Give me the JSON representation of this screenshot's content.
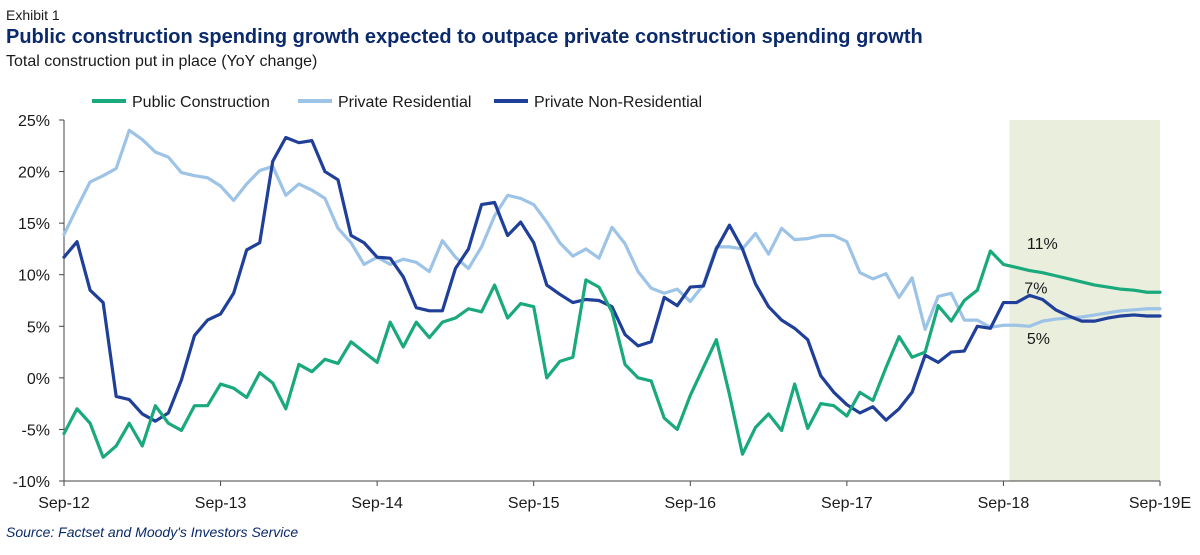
{
  "header": {
    "exhibit": "Exhibit 1",
    "title": "Public construction spending growth expected to outpace private construction spending growth",
    "subtitle": "Total construction put in place (YoY change)"
  },
  "source": "Source: Factset and Moody's Investors Service",
  "colors": {
    "public": "#1aa97c",
    "private_residential": "#9dc3e6",
    "private_non_residential": "#1f3f99",
    "forecast_band": "#e9eedd",
    "axis": "#444444"
  },
  "chart_data": {
    "type": "line",
    "title": "Public construction spending growth expected to outpace private construction spending growth",
    "xlabel": "",
    "ylabel": "",
    "ylim": [
      -10,
      25
    ],
    "y_ticks": [
      25,
      20,
      15,
      10,
      5,
      0,
      -5,
      -10
    ],
    "y_tick_labels": [
      "25%",
      "20%",
      "15%",
      "10%",
      "5%",
      "0%",
      "-5%",
      "-10%"
    ],
    "x_ticks": [
      0,
      12,
      24,
      36,
      48,
      60,
      72,
      84
    ],
    "x_tick_labels": [
      "Sep-12",
      "Sep-13",
      "Sep-14",
      "Sep-15",
      "Sep-16",
      "Sep-17",
      "Sep-18",
      "Sep-19E"
    ],
    "forecast_region": [
      72,
      84
    ],
    "legend": [
      "Public Construction",
      "Private Residential",
      "Private Non-Residential"
    ],
    "legend_position": "top-left",
    "annotations": [
      {
        "text": "11%",
        "x": 73.8,
        "y": 12.5
      },
      {
        "text": "7%",
        "x": 73.6,
        "y": 8.2
      },
      {
        "text": "5%",
        "x": 73.8,
        "y": 3.3
      }
    ],
    "series": [
      {
        "name": "Public Construction",
        "x": [
          0,
          1,
          2,
          3,
          4,
          5,
          6,
          7,
          8,
          9,
          10,
          11,
          12,
          13,
          14,
          15,
          16,
          17,
          18,
          19,
          20,
          21,
          22,
          23,
          24,
          25,
          26,
          27,
          28,
          29,
          30,
          31,
          32,
          33,
          34,
          35,
          36,
          37,
          38,
          39,
          40,
          41,
          42,
          43,
          44,
          45,
          46,
          47,
          48,
          49,
          50,
          51,
          52,
          53,
          54,
          55,
          56,
          57,
          58,
          59,
          60,
          61,
          62,
          63,
          64,
          65,
          66,
          67,
          68,
          69,
          70,
          71,
          72,
          73,
          74,
          75,
          76,
          77,
          78,
          79,
          80,
          81,
          82,
          83,
          84
        ],
        "values": [
          -5.4,
          -3.0,
          -4.4,
          -7.7,
          -6.6,
          -4.4,
          -6.6,
          -2.7,
          -4.4,
          -5.1,
          -2.7,
          -2.7,
          -0.6,
          -1.0,
          -1.9,
          0.5,
          -0.5,
          -3.0,
          1.3,
          0.6,
          1.8,
          1.4,
          3.5,
          2.5,
          1.5,
          5.4,
          3.0,
          5.4,
          3.9,
          5.4,
          5.8,
          6.7,
          6.4,
          9.0,
          5.8,
          7.2,
          6.9,
          0.0,
          1.6,
          2.0,
          9.5,
          8.8,
          6.4,
          1.3,
          0.0,
          -0.3,
          -3.9,
          -5.0,
          -1.7,
          1.0,
          3.7,
          -1.6,
          -7.4,
          -4.8,
          -3.5,
          -5.1,
          -0.6,
          -4.9,
          -2.5,
          -2.7,
          -3.7,
          -1.4,
          -2.2,
          1.0,
          4.0,
          2.0,
          2.5,
          7.0,
          5.5,
          7.5,
          8.5,
          12.3,
          11.0,
          10.7,
          10.4,
          10.2,
          9.9,
          9.6,
          9.3,
          9.0,
          8.8,
          8.6,
          8.5,
          8.3,
          8.3
        ]
      },
      {
        "name": "Private Residential",
        "x": [
          0,
          1,
          2,
          3,
          4,
          5,
          6,
          7,
          8,
          9,
          10,
          11,
          12,
          13,
          14,
          15,
          16,
          17,
          18,
          19,
          20,
          21,
          22,
          23,
          24,
          25,
          26,
          27,
          28,
          29,
          30,
          31,
          32,
          33,
          34,
          35,
          36,
          37,
          38,
          39,
          40,
          41,
          42,
          43,
          44,
          45,
          46,
          47,
          48,
          49,
          50,
          51,
          52,
          53,
          54,
          55,
          56,
          57,
          58,
          59,
          60,
          61,
          62,
          63,
          64,
          65,
          66,
          67,
          68,
          69,
          70,
          71,
          72,
          73,
          74,
          75,
          76,
          77,
          78,
          79,
          80,
          81,
          82,
          83,
          84
        ],
        "values": [
          13.9,
          16.5,
          19.0,
          19.6,
          20.3,
          24.0,
          23.1,
          21.9,
          21.4,
          19.9,
          19.6,
          19.4,
          18.6,
          17.2,
          18.8,
          20.1,
          20.5,
          17.7,
          18.8,
          18.2,
          17.4,
          14.5,
          13.1,
          11.0,
          11.7,
          11.0,
          11.5,
          11.2,
          10.3,
          13.3,
          11.7,
          10.6,
          12.7,
          15.7,
          17.7,
          17.4,
          16.8,
          15.1,
          13.1,
          11.8,
          12.5,
          11.6,
          14.6,
          13.0,
          10.3,
          8.7,
          8.2,
          8.6,
          7.4,
          9.0,
          12.7,
          12.7,
          12.5,
          14.0,
          12.0,
          14.5,
          13.4,
          13.5,
          13.8,
          13.8,
          13.2,
          10.2,
          9.6,
          10.1,
          7.8,
          9.7,
          4.7,
          7.9,
          8.2,
          5.6,
          5.6,
          4.9,
          5.1,
          5.1,
          5.0,
          5.5,
          5.7,
          5.8,
          5.9,
          6.1,
          6.3,
          6.5,
          6.6,
          6.7,
          6.7
        ]
      },
      {
        "name": "Private Non-Residential",
        "x": [
          0,
          1,
          2,
          3,
          4,
          5,
          6,
          7,
          8,
          9,
          10,
          11,
          12,
          13,
          14,
          15,
          16,
          17,
          18,
          19,
          20,
          21,
          22,
          23,
          24,
          25,
          26,
          27,
          28,
          29,
          30,
          31,
          32,
          33,
          34,
          35,
          36,
          37,
          38,
          39,
          40,
          41,
          42,
          43,
          44,
          45,
          46,
          47,
          48,
          49,
          50,
          51,
          52,
          53,
          54,
          55,
          56,
          57,
          58,
          59,
          60,
          61,
          62,
          63,
          64,
          65,
          66,
          67,
          68,
          69,
          70,
          71,
          72,
          73,
          74,
          75,
          76,
          77,
          78,
          79,
          80,
          81,
          82,
          83,
          84
        ],
        "values": [
          11.7,
          13.2,
          8.5,
          7.3,
          -1.8,
          -2.1,
          -3.5,
          -4.2,
          -3.4,
          -0.2,
          4.1,
          5.6,
          6.2,
          8.2,
          12.4,
          13.1,
          21.0,
          23.3,
          22.8,
          23.0,
          20.0,
          19.2,
          13.8,
          13.1,
          11.7,
          11.6,
          9.8,
          6.8,
          6.5,
          6.5,
          10.6,
          12.5,
          16.8,
          17.0,
          13.8,
          15.1,
          13.1,
          9.0,
          8.1,
          7.3,
          7.6,
          7.5,
          6.9,
          4.2,
          3.1,
          3.5,
          7.8,
          7.0,
          8.8,
          8.9,
          12.5,
          14.8,
          12.5,
          9.1,
          6.9,
          5.6,
          4.8,
          3.7,
          0.2,
          -1.4,
          -2.6,
          -3.4,
          -2.8,
          -4.1,
          -3.0,
          -1.4,
          2.2,
          1.5,
          2.5,
          2.6,
          5.0,
          4.8,
          7.3,
          7.3,
          8.0,
          7.6,
          6.6,
          6.0,
          5.5,
          5.5,
          5.8,
          6.0,
          6.1,
          6.0,
          6.0
        ]
      }
    ]
  }
}
